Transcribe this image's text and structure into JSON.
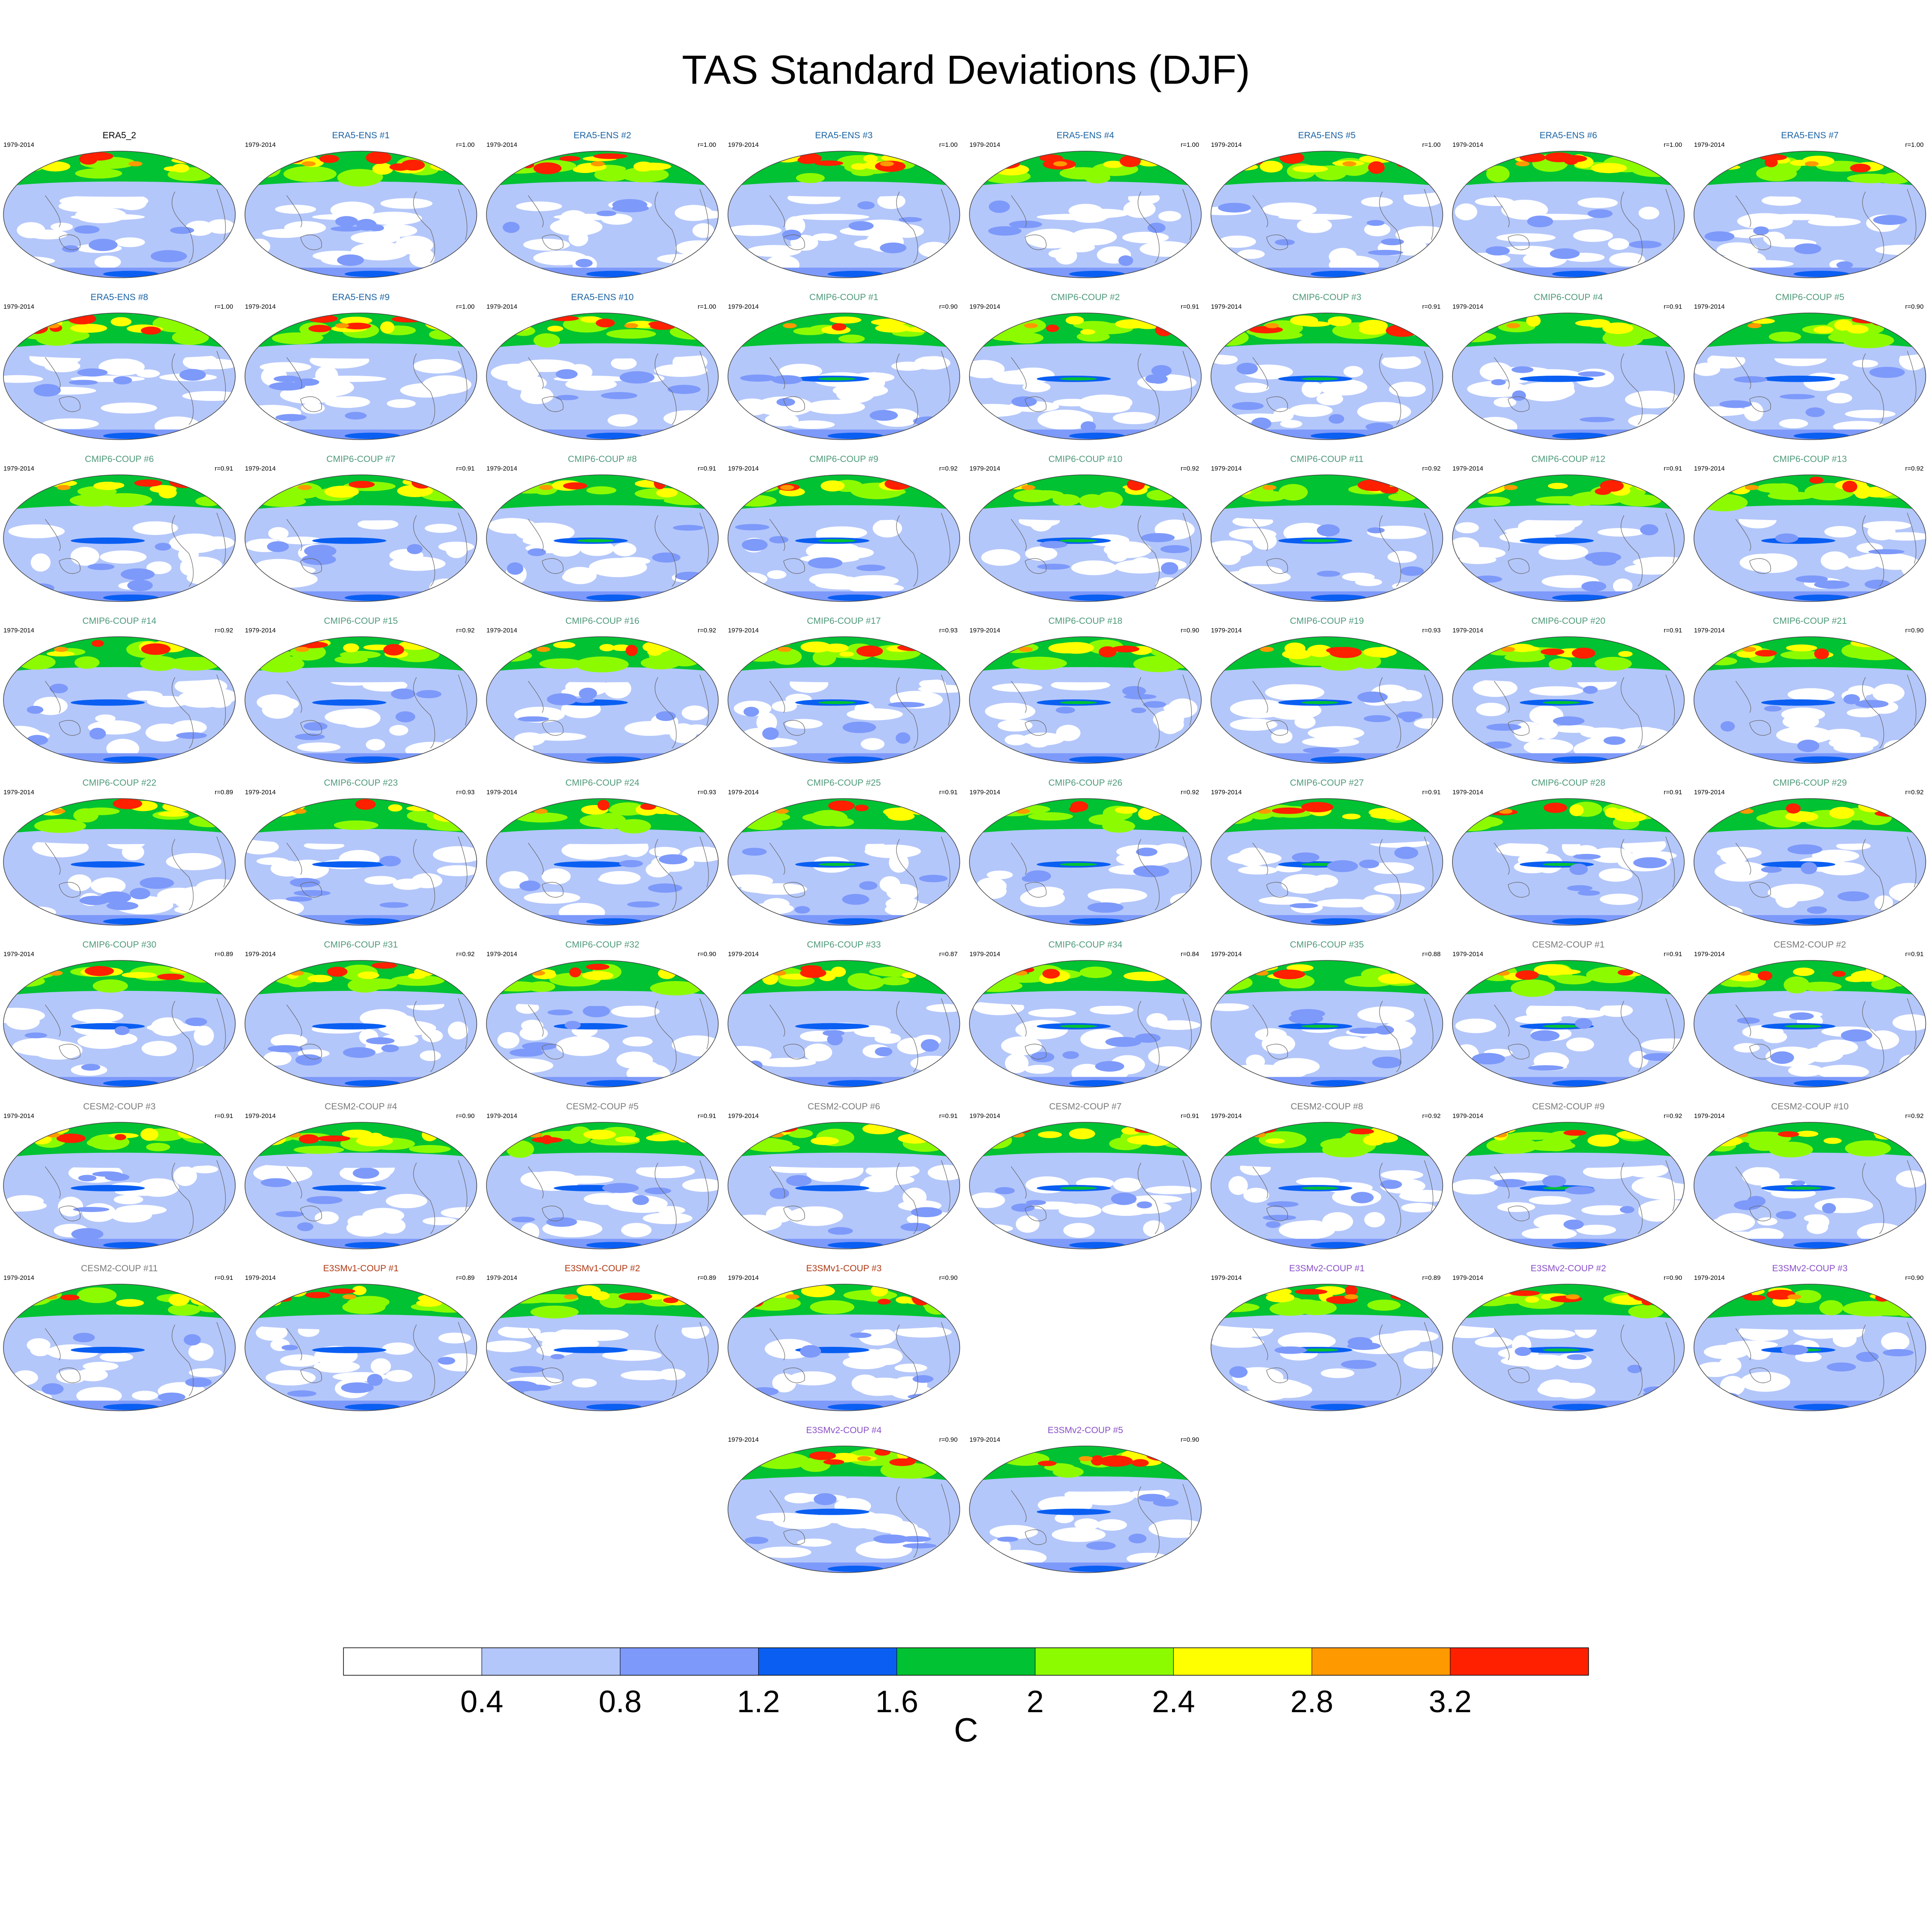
{
  "chart_data": {
    "type": "heatmap",
    "title": "TAS Standard Deviations (DJF)",
    "period": "1979-2014",
    "colorbar": {
      "unit": "C",
      "ticks": [
        "0.4",
        "0.8",
        "1.2",
        "1.6",
        "2",
        "2.4",
        "2.8",
        "3.2"
      ],
      "levels": [
        0.4,
        0.8,
        1.2,
        1.6,
        2.0,
        2.4,
        2.8,
        3.2
      ],
      "colors": [
        "#ffffff",
        "#b4c7fb",
        "#7d99fa",
        "#0a5ff2",
        "#00c232",
        "#8dfb00",
        "#ffff00",
        "#ff9900",
        "#ff2000"
      ]
    },
    "group_colors": {
      "obs": "#000000",
      "ERA5": "#1b63a5",
      "CMIP6": "#4f9a7a",
      "CESM2": "#7a7a7a",
      "E3SMv1": "#b03a16",
      "E3SMv2": "#8a50c8"
    },
    "panels": [
      {
        "label": "ERA5_2",
        "group": "obs",
        "r": ""
      },
      {
        "label": "ERA5-ENS   #1",
        "group": "ERA5",
        "r": "r=1.00"
      },
      {
        "label": "ERA5-ENS   #2",
        "group": "ERA5",
        "r": "r=1.00"
      },
      {
        "label": "ERA5-ENS   #3",
        "group": "ERA5",
        "r": "r=1.00"
      },
      {
        "label": "ERA5-ENS   #4",
        "group": "ERA5",
        "r": "r=1.00"
      },
      {
        "label": "ERA5-ENS   #5",
        "group": "ERA5",
        "r": "r=1.00"
      },
      {
        "label": "ERA5-ENS   #6",
        "group": "ERA5",
        "r": "r=1.00"
      },
      {
        "label": "ERA5-ENS   #7",
        "group": "ERA5",
        "r": "r=1.00"
      },
      {
        "label": "ERA5-ENS   #8",
        "group": "ERA5",
        "r": "r=1.00"
      },
      {
        "label": "ERA5-ENS   #9",
        "group": "ERA5",
        "r": "r=1.00"
      },
      {
        "label": "ERA5-ENS   #10",
        "group": "ERA5",
        "r": "r=1.00"
      },
      {
        "label": "CMIP6-COUP  #1",
        "group": "CMIP6",
        "r": "r=0.90"
      },
      {
        "label": "CMIP6-COUP  #2",
        "group": "CMIP6",
        "r": "r=0.91"
      },
      {
        "label": "CMIP6-COUP  #3",
        "group": "CMIP6",
        "r": "r=0.91"
      },
      {
        "label": "CMIP6-COUP  #4",
        "group": "CMIP6",
        "r": "r=0.91"
      },
      {
        "label": "CMIP6-COUP  #5",
        "group": "CMIP6",
        "r": "r=0.90"
      },
      {
        "label": "CMIP6-COUP  #6",
        "group": "CMIP6",
        "r": "r=0.91"
      },
      {
        "label": "CMIP6-COUP  #7",
        "group": "CMIP6",
        "r": "r=0.91"
      },
      {
        "label": "CMIP6-COUP  #8",
        "group": "CMIP6",
        "r": "r=0.91"
      },
      {
        "label": "CMIP6-COUP  #9",
        "group": "CMIP6",
        "r": "r=0.92"
      },
      {
        "label": "CMIP6-COUP  #10",
        "group": "CMIP6",
        "r": "r=0.92"
      },
      {
        "label": "CMIP6-COUP  #11",
        "group": "CMIP6",
        "r": "r=0.92"
      },
      {
        "label": "CMIP6-COUP  #12",
        "group": "CMIP6",
        "r": "r=0.91"
      },
      {
        "label": "CMIP6-COUP  #13",
        "group": "CMIP6",
        "r": "r=0.92"
      },
      {
        "label": "CMIP6-COUP  #14",
        "group": "CMIP6",
        "r": "r=0.92"
      },
      {
        "label": "CMIP6-COUP  #15",
        "group": "CMIP6",
        "r": "r=0.92"
      },
      {
        "label": "CMIP6-COUP  #16",
        "group": "CMIP6",
        "r": "r=0.92"
      },
      {
        "label": "CMIP6-COUP  #17",
        "group": "CMIP6",
        "r": "r=0.93"
      },
      {
        "label": "CMIP6-COUP  #18",
        "group": "CMIP6",
        "r": "r=0.90"
      },
      {
        "label": "CMIP6-COUP  #19",
        "group": "CMIP6",
        "r": "r=0.93"
      },
      {
        "label": "CMIP6-COUP  #20",
        "group": "CMIP6",
        "r": "r=0.91"
      },
      {
        "label": "CMIP6-COUP  #21",
        "group": "CMIP6",
        "r": "r=0.90"
      },
      {
        "label": "CMIP6-COUP  #22",
        "group": "CMIP6",
        "r": "r=0.89"
      },
      {
        "label": "CMIP6-COUP  #23",
        "group": "CMIP6",
        "r": "r=0.93"
      },
      {
        "label": "CMIP6-COUP  #24",
        "group": "CMIP6",
        "r": "r=0.93"
      },
      {
        "label": "CMIP6-COUP  #25",
        "group": "CMIP6",
        "r": "r=0.91"
      },
      {
        "label": "CMIP6-COUP  #26",
        "group": "CMIP6",
        "r": "r=0.92"
      },
      {
        "label": "CMIP6-COUP  #27",
        "group": "CMIP6",
        "r": "r=0.91"
      },
      {
        "label": "CMIP6-COUP  #28",
        "group": "CMIP6",
        "r": "r=0.91"
      },
      {
        "label": "CMIP6-COUP  #29",
        "group": "CMIP6",
        "r": "r=0.92"
      },
      {
        "label": "CMIP6-COUP  #30",
        "group": "CMIP6",
        "r": "r=0.89"
      },
      {
        "label": "CMIP6-COUP  #31",
        "group": "CMIP6",
        "r": "r=0.92"
      },
      {
        "label": "CMIP6-COUP  #32",
        "group": "CMIP6",
        "r": "r=0.90"
      },
      {
        "label": "CMIP6-COUP  #33",
        "group": "CMIP6",
        "r": "r=0.87"
      },
      {
        "label": "CMIP6-COUP  #34",
        "group": "CMIP6",
        "r": "r=0.84"
      },
      {
        "label": "CMIP6-COUP  #35",
        "group": "CMIP6",
        "r": "r=0.88"
      },
      {
        "label": "CESM2-COUP   #1",
        "group": "CESM2",
        "r": "r=0.91"
      },
      {
        "label": "CESM2-COUP   #2",
        "group": "CESM2",
        "r": "r=0.91"
      },
      {
        "label": "CESM2-COUP   #3",
        "group": "CESM2",
        "r": "r=0.91"
      },
      {
        "label": "CESM2-COUP   #4",
        "group": "CESM2",
        "r": "r=0.90"
      },
      {
        "label": "CESM2-COUP   #5",
        "group": "CESM2",
        "r": "r=0.91"
      },
      {
        "label": "CESM2-COUP   #6",
        "group": "CESM2",
        "r": "r=0.91"
      },
      {
        "label": "CESM2-COUP   #7",
        "group": "CESM2",
        "r": "r=0.91"
      },
      {
        "label": "CESM2-COUP   #8",
        "group": "CESM2",
        "r": "r=0.92"
      },
      {
        "label": "CESM2-COUP   #9",
        "group": "CESM2",
        "r": "r=0.92"
      },
      {
        "label": "CESM2-COUP   #10",
        "group": "CESM2",
        "r": "r=0.92"
      },
      {
        "label": "CESM2-COUP   #11",
        "group": "CESM2",
        "r": "r=0.91"
      },
      {
        "label": "E3SMv1-COUP #1",
        "group": "E3SMv1",
        "r": "r=0.89"
      },
      {
        "label": "E3SMv1-COUP #2",
        "group": "E3SMv1",
        "r": "r=0.89"
      },
      {
        "label": "E3SMv1-COUP #3",
        "group": "E3SMv1",
        "r": "r=0.90"
      },
      null,
      {
        "label": "E3SMv2-COUP #1",
        "group": "E3SMv2",
        "r": "r=0.89"
      },
      {
        "label": "E3SMv2-COUP #2",
        "group": "E3SMv2",
        "r": "r=0.90"
      },
      {
        "label": "E3SMv2-COUP #3",
        "group": "E3SMv2",
        "r": "r=0.90"
      },
      null,
      null,
      null,
      {
        "label": "E3SMv2-COUP #4",
        "group": "E3SMv2",
        "r": "r=0.90"
      },
      {
        "label": "E3SMv2-COUP #5",
        "group": "E3SMv2",
        "r": "r=0.90"
      },
      null,
      null,
      null
    ]
  }
}
